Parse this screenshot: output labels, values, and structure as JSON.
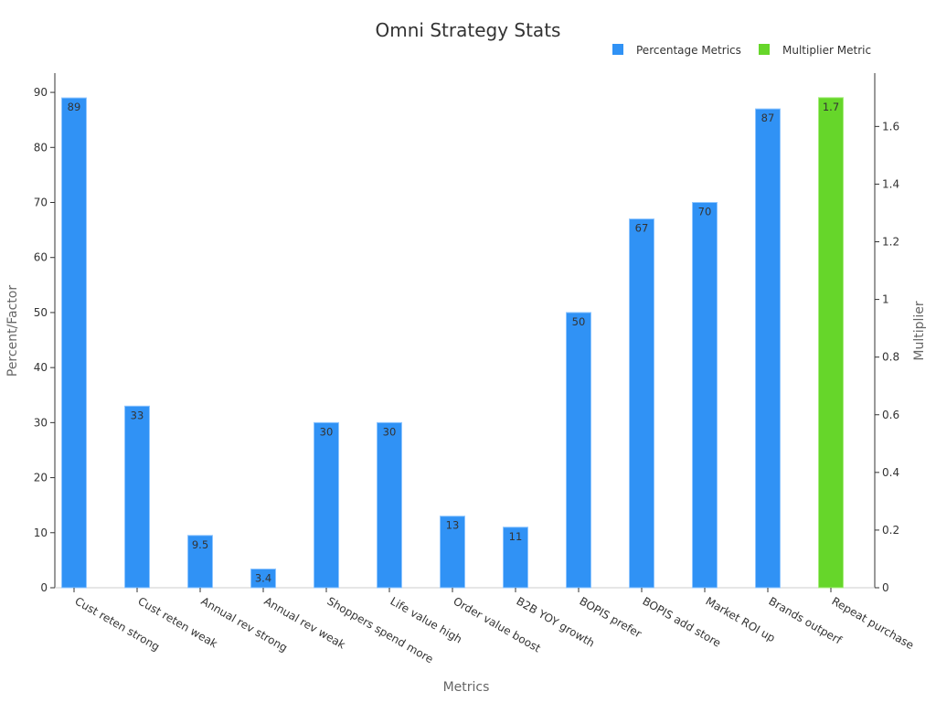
{
  "colors": {
    "percent": "#3092f5",
    "percent_edge": "#8ec5ff",
    "multiplier": "#66d62a",
    "multiplier_edge": "#a6ee7d"
  },
  "chart_data": {
    "type": "bar",
    "title": "Omni Strategy Stats",
    "xlabel": "Metrics",
    "ylabel": "Percent/Factor",
    "y2label": "Multiplier",
    "legend_position": "top-right",
    "grid": false,
    "categories": [
      "Cust reten strong",
      "Cust reten weak",
      "Annual rev strong",
      "Annual rev weak",
      "Shoppers spend more",
      "Life value high",
      "Order value boost",
      "B2B YOY growth",
      "BOPIS prefer",
      "BOPIS add store",
      "Market ROI up",
      "Brands outperf",
      "Repeat purchase"
    ],
    "ylim": [
      0,
      93.5
    ],
    "y_ticks": [
      0,
      10,
      20,
      30,
      40,
      50,
      60,
      70,
      80,
      90
    ],
    "y2lim": [
      0,
      1.785
    ],
    "y2_ticks": [
      "0",
      "0.2",
      "0.4",
      "0.6",
      "0.8",
      "1",
      "1.2",
      "1.4",
      "1.6"
    ],
    "series": [
      {
        "name": "Percentage Metrics",
        "axis": "left",
        "values": [
          89,
          33,
          9.5,
          3.4,
          30,
          30,
          13,
          11,
          50,
          67,
          70,
          87,
          null
        ],
        "labels": [
          "89",
          "33",
          "9.5",
          "3.4",
          "30",
          "30",
          "13",
          "11",
          "50",
          "67",
          "70",
          "87",
          ""
        ]
      },
      {
        "name": "Multiplier Metric",
        "axis": "right",
        "values": [
          null,
          null,
          null,
          null,
          null,
          null,
          null,
          null,
          null,
          null,
          null,
          null,
          1.7
        ],
        "labels": [
          "",
          "",
          "",
          "",
          "",
          "",
          "",
          "",
          "",
          "",
          "",
          "",
          "1.7"
        ]
      }
    ]
  }
}
